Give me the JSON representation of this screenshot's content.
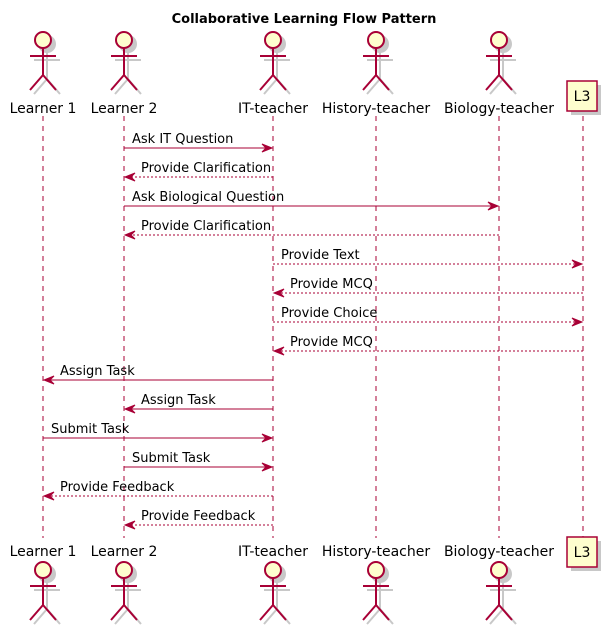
{
  "title": "Collaborative Learning Flow Pattern",
  "colors": {
    "line": "#A80036",
    "fill": "#FEFECE",
    "shadow": "#C8C8C8"
  },
  "participants": [
    {
      "id": "L1",
      "name": "Learner 1",
      "kind": "actor"
    },
    {
      "id": "L2",
      "name": "Learner 2",
      "kind": "actor"
    },
    {
      "id": "IT",
      "name": "IT-teacher",
      "kind": "actor"
    },
    {
      "id": "HT",
      "name": "History-teacher",
      "kind": "actor"
    },
    {
      "id": "BT",
      "name": "Biology-teacher",
      "kind": "actor"
    },
    {
      "id": "L3",
      "name": "L3",
      "kind": "participant"
    }
  ],
  "messages": [
    {
      "from": "L2",
      "to": "IT",
      "label": "Ask IT Question",
      "style": "solid"
    },
    {
      "from": "IT",
      "to": "L2",
      "label": "Provide Clarification",
      "style": "dashed"
    },
    {
      "from": "L2",
      "to": "BT",
      "label": "Ask Biological Question",
      "style": "solid"
    },
    {
      "from": "BT",
      "to": "L2",
      "label": "Provide Clarification",
      "style": "dashed"
    },
    {
      "from": "IT",
      "to": "L3",
      "label": "Provide Text",
      "style": "dashed"
    },
    {
      "from": "L3",
      "to": "IT",
      "label": "Provide MCQ",
      "style": "dashed"
    },
    {
      "from": "IT",
      "to": "L3",
      "label": "Provide Choice",
      "style": "dashed"
    },
    {
      "from": "L3",
      "to": "IT",
      "label": "Provide MCQ",
      "style": "dashed"
    },
    {
      "from": "IT",
      "to": "L1",
      "label": "Assign Task",
      "style": "solid"
    },
    {
      "from": "IT",
      "to": "L2",
      "label": "Assign Task",
      "style": "solid"
    },
    {
      "from": "L1",
      "to": "IT",
      "label": "Submit Task",
      "style": "solid"
    },
    {
      "from": "L2",
      "to": "IT",
      "label": "Submit Task",
      "style": "solid"
    },
    {
      "from": "IT",
      "to": "L1",
      "label": "Provide Feedback",
      "style": "dashed"
    },
    {
      "from": "IT",
      "to": "L2",
      "label": "Provide Feedback",
      "style": "dashed"
    }
  ]
}
